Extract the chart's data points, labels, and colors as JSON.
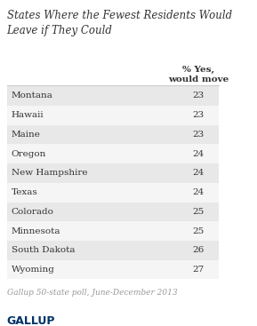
{
  "title": "States Where the Fewest Residents Would\nLeave if They Could",
  "col_header": "% Yes,\nwould move",
  "states": [
    "Montana",
    "Hawaii",
    "Maine",
    "Oregon",
    "New Hampshire",
    "Texas",
    "Colorado",
    "Minnesota",
    "South Dakota",
    "Wyoming"
  ],
  "values": [
    23,
    23,
    23,
    24,
    24,
    24,
    25,
    25,
    26,
    27
  ],
  "footnote": "Gallup 50-state poll, June-December 2013",
  "logo": "GALLUP",
  "row_colors": [
    "#e8e8e8",
    "#f5f5f5",
    "#e8e8e8",
    "#f5f5f5",
    "#e8e8e8",
    "#f5f5f5",
    "#e8e8e8",
    "#f5f5f5",
    "#e8e8e8",
    "#f5f5f5"
  ],
  "bg_color": "#ffffff",
  "text_color": "#333333",
  "title_color": "#333333",
  "header_color": "#333333",
  "footnote_color": "#999999",
  "logo_color": "#003366"
}
